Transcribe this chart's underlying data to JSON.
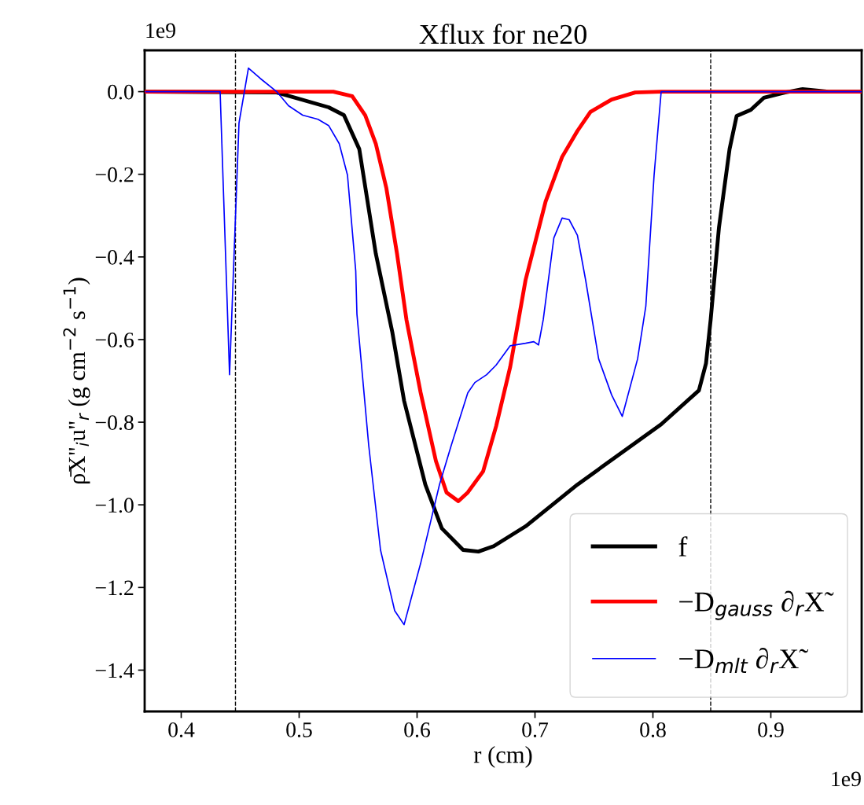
{
  "chart_data": {
    "type": "line",
    "title": "Xflux for ne20",
    "xlabel": "r (cm)",
    "ylabel": "ρ̄X''$_{i}$u''$_{r}$ (g cm$^{−2}$ s$^{−1}$)",
    "annotations": [
      "1e9",
      "1e9"
    ],
    "xlim": [
      0.369,
      0.977
    ],
    "ylim": [
      -1.5,
      0.1
    ],
    "xticks": [
      0.4,
      0.5,
      0.6,
      0.7,
      0.8,
      0.9
    ],
    "yticks": [
      {
        "value": -1.4,
        "label": "−1.4"
      },
      {
        "value": -1.2,
        "label": "−1.2"
      },
      {
        "value": -1.0,
        "label": "−1.0"
      },
      {
        "value": -0.8,
        "label": "−0.8"
      },
      {
        "value": -0.6,
        "label": "−0.6"
      },
      {
        "value": -0.4,
        "label": "−0.4"
      },
      {
        "value": -0.2,
        "label": "−0.2"
      },
      {
        "value": 0.0,
        "label": "0.0"
      }
    ],
    "grid": false,
    "legend": "bottom right",
    "marker": "none",
    "line_style": "solid",
    "ref_lines": [
      {
        "axis": "x",
        "value": 0.446,
        "color": "#000000",
        "line_style": "dashed"
      },
      {
        "axis": "x",
        "value": 0.849,
        "color": "#000000",
        "line_style": "dashed"
      }
    ],
    "series": [
      {
        "name": "f",
        "color": "#000000",
        "x": [
          0.37,
          0.481,
          0.525,
          0.538,
          0.551,
          0.565,
          0.579,
          0.589,
          0.607,
          0.621,
          0.639,
          0.652,
          0.665,
          0.692,
          0.736,
          0.807,
          0.839,
          0.845,
          0.849,
          0.856,
          0.865,
          0.871,
          0.883,
          0.894,
          0.912,
          0.927,
          0.949,
          0.977
        ],
        "values": [
          0,
          -0.002,
          -0.038,
          -0.057,
          -0.139,
          -0.392,
          -0.582,
          -0.748,
          -0.951,
          -1.057,
          -1.109,
          -1.113,
          -1.1,
          -1.052,
          -0.951,
          -0.805,
          -0.723,
          -0.658,
          -0.551,
          -0.329,
          -0.139,
          -0.059,
          -0.044,
          -0.015,
          -0.002,
          0.006,
          0,
          0
        ]
      },
      {
        "name": "−D$_{gauss}$ ∂$_{r}$X̃",
        "color": "#ff0000",
        "x": [
          0.37,
          0.529,
          0.545,
          0.556,
          0.565,
          0.574,
          0.583,
          0.591,
          0.603,
          0.616,
          0.625,
          0.635,
          0.643,
          0.656,
          0.667,
          0.679,
          0.692,
          0.709,
          0.723,
          0.736,
          0.747,
          0.765,
          0.785,
          0.807,
          0.977
        ],
        "values": [
          0,
          0,
          -0.011,
          -0.057,
          -0.126,
          -0.234,
          -0.392,
          -0.552,
          -0.728,
          -0.894,
          -0.97,
          -0.991,
          -0.97,
          -0.919,
          -0.81,
          -0.666,
          -0.456,
          -0.266,
          -0.158,
          -0.095,
          -0.049,
          -0.019,
          -0.002,
          0,
          0
        ]
      },
      {
        "name": "−D$_{mlt}$ ∂$_{r}$X̃",
        "color": "#0000ff",
        "x": [
          0.37,
          0.433,
          0.441,
          0.449,
          0.457,
          0.467,
          0.481,
          0.491,
          0.503,
          0.516,
          0.525,
          0.534,
          0.541,
          0.548,
          0.549,
          0.559,
          0.569,
          0.581,
          0.589,
          0.603,
          0.619,
          0.629,
          0.643,
          0.649,
          0.659,
          0.667,
          0.679,
          0.692,
          0.699,
          0.703,
          0.707,
          0.716,
          0.723,
          0.729,
          0.736,
          0.743,
          0.754,
          0.765,
          0.774,
          0.787,
          0.794,
          0.801,
          0.807,
          0.977
        ],
        "values": [
          0,
          0,
          -0.685,
          -0.076,
          0.057,
          0.032,
          0,
          -0.034,
          -0.057,
          -0.067,
          -0.082,
          -0.126,
          -0.202,
          -0.434,
          -0.538,
          -0.856,
          -1.109,
          -1.256,
          -1.29,
          -1.142,
          -0.951,
          -0.856,
          -0.729,
          -0.704,
          -0.685,
          -0.662,
          -0.615,
          -0.609,
          -0.605,
          -0.613,
          -0.552,
          -0.354,
          -0.306,
          -0.31,
          -0.348,
          -0.457,
          -0.647,
          -0.734,
          -0.786,
          -0.647,
          -0.519,
          -0.202,
          0,
          0
        ]
      }
    ]
  }
}
